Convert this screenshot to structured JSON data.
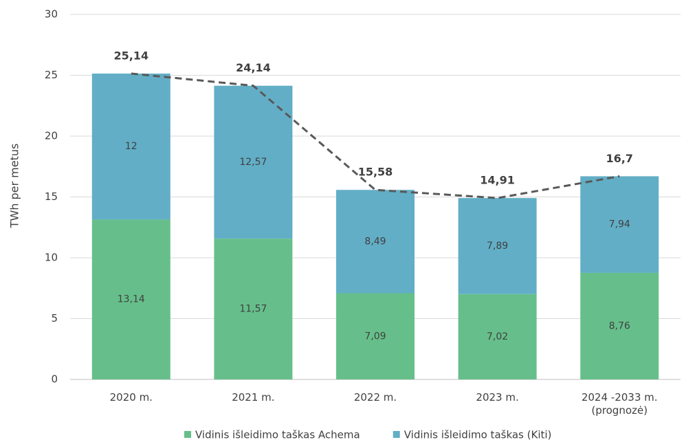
{
  "chart_data": {
    "type": "bar",
    "stacked": true,
    "y_label": "TWh per metus",
    "categories": [
      "2020 m.",
      "2021 m.",
      "2022 m.",
      "2023 m.",
      "2024 -2033 m.\n(prognozė)"
    ],
    "series": [
      {
        "name": "Vidinis išleidimo taškas Achema",
        "color": "#66bf8a",
        "values": [
          13.14,
          11.57,
          7.09,
          7.02,
          8.76
        ],
        "value_labels": [
          "13,14",
          "11,57",
          "7,09",
          "7,02",
          "8,76"
        ]
      },
      {
        "name": "Vidinis išleidimo taškas (Kiti)",
        "color": "#62aec6",
        "values": [
          12,
          12.57,
          8.49,
          7.89,
          7.94
        ],
        "value_labels": [
          "12",
          "12,57",
          "8,49",
          "7,89",
          "7,94"
        ]
      }
    ],
    "totals": {
      "color": "#595959",
      "values": [
        25.14,
        24.14,
        15.58,
        14.91,
        16.7
      ],
      "value_labels": [
        "25,14",
        "24,14",
        "15,58",
        "14,91",
        "16,7"
      ]
    },
    "ylim": [
      0,
      30
    ],
    "yticks": [
      0,
      5,
      10,
      15,
      20,
      25,
      30
    ],
    "grid": true,
    "legend": "bottom"
  }
}
